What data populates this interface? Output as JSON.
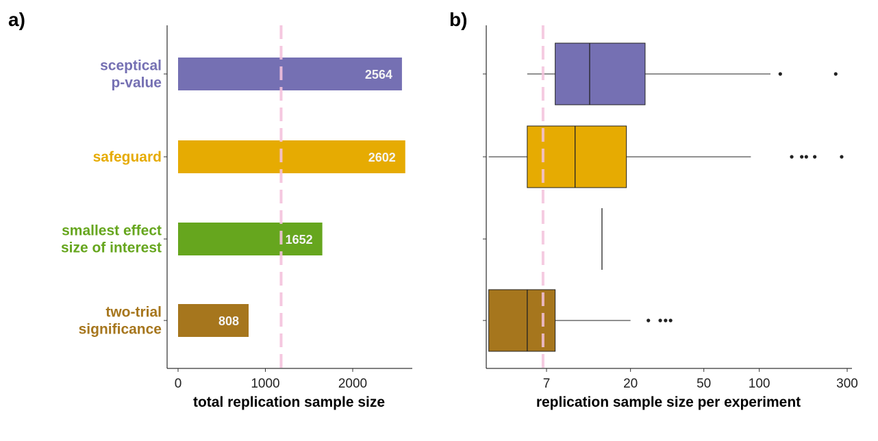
{
  "panels": {
    "a_label": "a)",
    "b_label": "b)"
  },
  "colors": {
    "sceptical": "#7570b3",
    "safeguard": "#e6ab02",
    "sesoi": "#66a61e",
    "two_trial": "#a6761d",
    "reference_line": "#f4c2dc"
  },
  "chart_data": [
    {
      "type": "bar",
      "orientation": "horizontal",
      "panel": "a)",
      "categories": [
        {
          "label_lines": [
            "sceptical",
            "p-value"
          ],
          "color_key": "sceptical"
        },
        {
          "label_lines": [
            "safeguard"
          ],
          "color_key": "safeguard"
        },
        {
          "label_lines": [
            "smallest effect",
            "size of interest"
          ],
          "color_key": "sesoi"
        },
        {
          "label_lines": [
            "two-trial",
            "significance"
          ],
          "color_key": "two_trial"
        }
      ],
      "values": [
        2564,
        2602,
        1652,
        808
      ],
      "value_labels": [
        "2564",
        "2602",
        "1652",
        "808"
      ],
      "xlabel": "total replication sample size",
      "ylabel": "",
      "xlim": [
        -120,
        2700
      ],
      "xticks": [
        0,
        1000,
        2000
      ],
      "xtick_labels": [
        "0",
        "1000",
        "2000"
      ],
      "reference_line": 1180,
      "grid": false
    },
    {
      "type": "box",
      "orientation": "horizontal",
      "panel": "b)",
      "scale": "log",
      "categories": [
        "sceptical p-value",
        "safeguard",
        "smallest effect size of interest",
        "two-trial significance"
      ],
      "boxes": [
        {
          "color_key": "sceptical",
          "whisker_low": 5.5,
          "q1": 7.8,
          "median": 12,
          "q3": 24,
          "whisker_high": 115,
          "outliers": [
            130,
            260
          ]
        },
        {
          "color_key": "safeguard",
          "whisker_low": 3.4,
          "q1": 5.5,
          "median": 10,
          "q3": 19,
          "whisker_high": 90,
          "outliers": [
            150,
            170,
            180,
            200,
            280
          ]
        },
        {
          "color_key": "sesoi",
          "whisker_low": 14,
          "q1": 14,
          "median": 14,
          "q3": 14,
          "whisker_high": 14,
          "outliers": []
        },
        {
          "color_key": "two_trial",
          "whisker_low": 3.4,
          "q1": 3.4,
          "median": 5.5,
          "q3": 7.8,
          "whisker_high": 20,
          "outliers": [
            25,
            29,
            31,
            33
          ]
        }
      ],
      "xlabel": "replication sample size per experiment",
      "ylabel": "",
      "xlim": [
        2.8,
        330
      ],
      "xticks": [
        7,
        20,
        50,
        100,
        300
      ],
      "xtick_labels": [
        "7",
        "20",
        "50",
        "100",
        "300"
      ],
      "reference_line": 6.7,
      "grid": false
    }
  ]
}
